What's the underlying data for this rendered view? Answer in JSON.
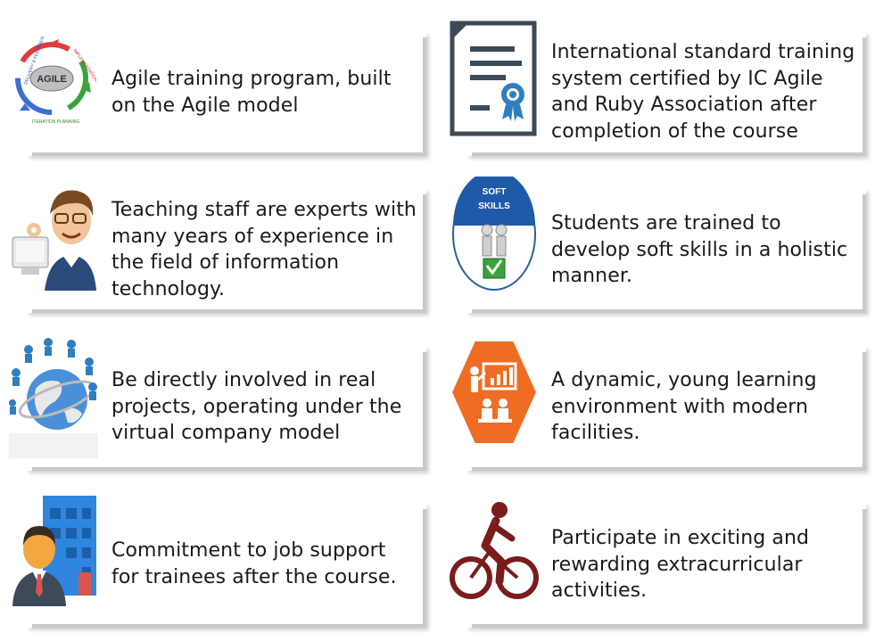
{
  "features": [
    {
      "icon": "agile-cycle-icon",
      "text_lines": [
        "Agile training program, built",
        "on the Agile model"
      ],
      "icon_labels": {
        "center": "AGILE",
        "top_left": "DELIVERY & FEEDBACK",
        "top_right": "IMPLEMENTATION",
        "bottom": "ITERATION PLANNING"
      }
    },
    {
      "icon": "certificate-icon",
      "text_lines": [
        "International standard training",
        "system certified by IC Agile",
        "and Ruby Association after",
        "completion of the course"
      ]
    },
    {
      "icon": "teacher-icon",
      "text_lines": [
        "Teaching staff are experts with",
        "many years of experience in",
        "the field of information",
        "technology."
      ]
    },
    {
      "icon": "soft-skills-icon",
      "text_lines": [
        "Students are trained to",
        "develop soft skills in a holistic",
        "manner."
      ],
      "icon_labels": {
        "line1": "SOFT",
        "line2": "SKILLS"
      }
    },
    {
      "icon": "globe-network-icon",
      "text_lines": [
        "Be directly involved in real",
        "projects, operating under the",
        "virtual company model"
      ]
    },
    {
      "icon": "presentation-icon",
      "text_lines": [
        "A dynamic, young learning",
        "environment with modern",
        "facilities."
      ]
    },
    {
      "icon": "businessman-building-icon",
      "text_lines": [
        "Commitment to job support",
        "for trainees after the course."
      ]
    },
    {
      "icon": "cyclist-icon",
      "text_lines": [
        "Participate in exciting and",
        "rewarding extracurricular",
        "activities."
      ]
    }
  ],
  "colors": {
    "card_shadow": "#c9c9c9",
    "text": "#1a1a1a",
    "orange": "#ef6c23",
    "maroon": "#7a1c1c",
    "blue": "#2d7fc1"
  }
}
